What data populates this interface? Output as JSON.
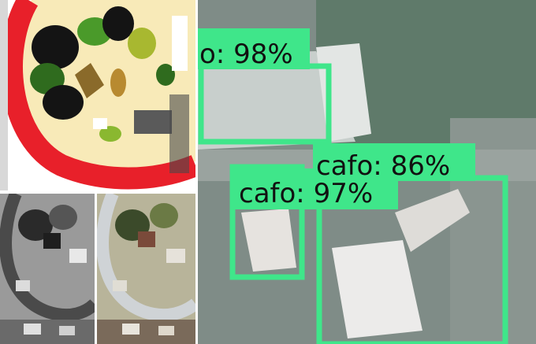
{
  "detections": [
    {
      "label": "o: 98%"
    },
    {
      "label": "cafo: 86%"
    },
    {
      "label": "cafo: 97%"
    }
  ],
  "colors": {
    "box": "#3fe68a",
    "road": "#e8202a",
    "ground": "#f8eab8",
    "tree": "#2f6b1e",
    "building": "#8a6a2a"
  }
}
